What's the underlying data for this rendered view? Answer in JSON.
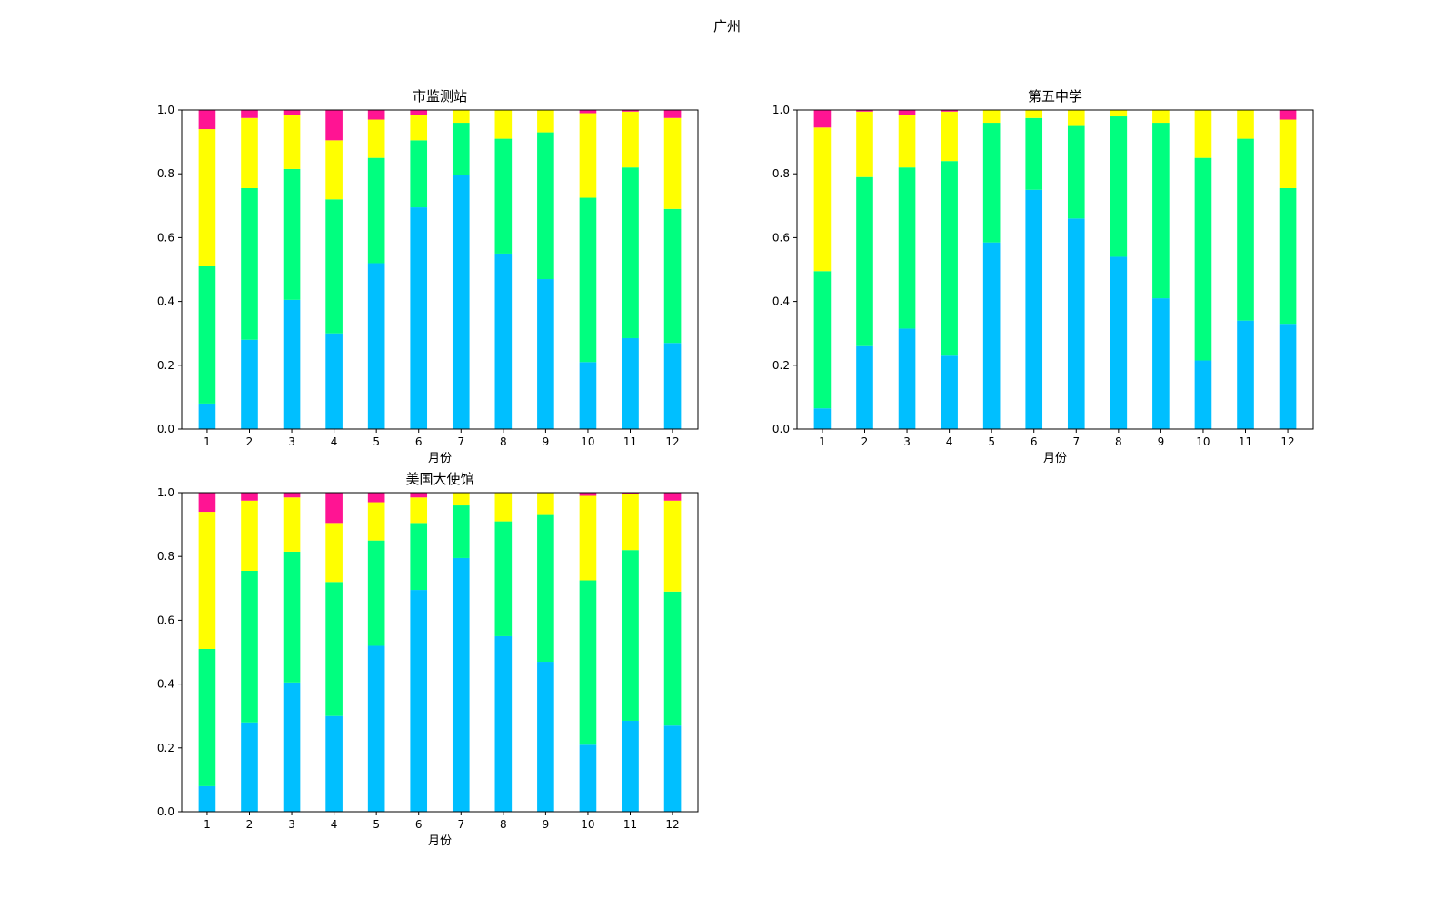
{
  "figure": {
    "suptitle": "广州"
  },
  "colors": {
    "seg0": "#00BFFF",
    "seg1": "#00FF7F",
    "seg2": "#FFFF00",
    "seg3": "#FF1493"
  },
  "chart_data": [
    {
      "type": "bar",
      "stacked": true,
      "title": "市监测站",
      "xlabel": "月份",
      "ylabel": "",
      "ylim": [
        0,
        1.0
      ],
      "yticks": [
        "0.0",
        "0.2",
        "0.4",
        "0.6",
        "0.8",
        "1.0"
      ],
      "categories": [
        "1",
        "2",
        "3",
        "4",
        "5",
        "6",
        "7",
        "8",
        "9",
        "10",
        "11",
        "12"
      ],
      "series": [
        {
          "values": [
            0.08,
            0.28,
            0.405,
            0.3,
            0.52,
            0.695,
            0.795,
            0.55,
            0.47,
            0.21,
            0.285,
            0.27
          ]
        },
        {
          "values": [
            0.43,
            0.475,
            0.41,
            0.42,
            0.33,
            0.21,
            0.165,
            0.36,
            0.46,
            0.515,
            0.535,
            0.42
          ]
        },
        {
          "values": [
            0.43,
            0.22,
            0.17,
            0.185,
            0.12,
            0.08,
            0.04,
            0.09,
            0.07,
            0.265,
            0.175,
            0.285
          ]
        },
        {
          "values": [
            0.06,
            0.025,
            0.015,
            0.095,
            0.03,
            0.015,
            0.0,
            0.0,
            0.0,
            0.01,
            0.005,
            0.025
          ]
        }
      ]
    },
    {
      "type": "bar",
      "stacked": true,
      "title": "第五中学",
      "xlabel": "月份",
      "ylabel": "",
      "ylim": [
        0,
        1.0
      ],
      "yticks": [
        "0.0",
        "0.2",
        "0.4",
        "0.6",
        "0.8",
        "1.0"
      ],
      "categories": [
        "1",
        "2",
        "3",
        "4",
        "5",
        "6",
        "7",
        "8",
        "9",
        "10",
        "11",
        "12"
      ],
      "series": [
        {
          "values": [
            0.065,
            0.26,
            0.315,
            0.23,
            0.585,
            0.75,
            0.66,
            0.54,
            0.41,
            0.215,
            0.34,
            0.33
          ]
        },
        {
          "values": [
            0.43,
            0.53,
            0.505,
            0.61,
            0.375,
            0.225,
            0.29,
            0.44,
            0.55,
            0.635,
            0.57,
            0.425
          ]
        },
        {
          "values": [
            0.45,
            0.205,
            0.165,
            0.155,
            0.04,
            0.025,
            0.05,
            0.02,
            0.04,
            0.15,
            0.09,
            0.215
          ]
        },
        {
          "values": [
            0.055,
            0.005,
            0.015,
            0.005,
            0.0,
            0.0,
            0.0,
            0.0,
            0.0,
            0.0,
            0.0,
            0.03
          ]
        }
      ]
    },
    {
      "type": "bar",
      "stacked": true,
      "title": "美国大使馆",
      "xlabel": "月份",
      "ylabel": "",
      "ylim": [
        0,
        1.0
      ],
      "yticks": [
        "0.0",
        "0.2",
        "0.4",
        "0.6",
        "0.8",
        "1.0"
      ],
      "categories": [
        "1",
        "2",
        "3",
        "4",
        "5",
        "6",
        "7",
        "8",
        "9",
        "10",
        "11",
        "12"
      ],
      "series": [
        {
          "values": [
            0.08,
            0.28,
            0.405,
            0.3,
            0.52,
            0.695,
            0.795,
            0.55,
            0.47,
            0.21,
            0.285,
            0.27
          ]
        },
        {
          "values": [
            0.43,
            0.475,
            0.41,
            0.42,
            0.33,
            0.21,
            0.165,
            0.36,
            0.46,
            0.515,
            0.535,
            0.42
          ]
        },
        {
          "values": [
            0.43,
            0.22,
            0.17,
            0.185,
            0.12,
            0.08,
            0.04,
            0.09,
            0.07,
            0.265,
            0.175,
            0.285
          ]
        },
        {
          "values": [
            0.06,
            0.025,
            0.015,
            0.095,
            0.03,
            0.015,
            0.0,
            0.0,
            0.0,
            0.01,
            0.005,
            0.025
          ]
        }
      ]
    }
  ]
}
